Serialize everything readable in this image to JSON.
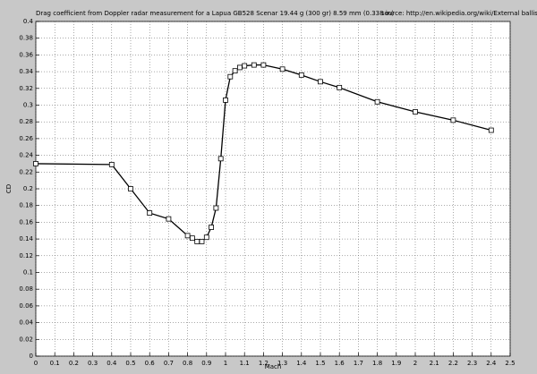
{
  "chart_data": {
    "type": "line",
    "title": "Drag coefficient from Doppler radar measurement for a Lapua GB528 Scenar 19.44 g (300 gr) 8.59 mm (0.338 in)",
    "source": "source: http://en.wikipedia.org/wiki/External ballistics",
    "x_label": "Mach",
    "y_label": "CD",
    "x": [
      0,
      0.4,
      0.5,
      0.6,
      0.7,
      0.8,
      0.825,
      0.85,
      0.875,
      0.9,
      0.925,
      0.95,
      0.975,
      1.0,
      1.025,
      1.05,
      1.075,
      1.1,
      1.15,
      1.2,
      1.3,
      1.4,
      1.5,
      1.6,
      1.8,
      2.0,
      2.2,
      2.4
    ],
    "values": [
      0.23,
      0.229,
      0.2,
      0.171,
      0.164,
      0.144,
      0.141,
      0.137,
      0.137,
      0.142,
      0.154,
      0.177,
      0.236,
      0.306,
      0.334,
      0.341,
      0.345,
      0.347,
      0.348,
      0.348,
      0.343,
      0.336,
      0.328,
      0.321,
      0.304,
      0.292,
      0.282,
      0.27
    ],
    "color": "#000000",
    "marker": "square",
    "grid": true,
    "xlim": [
      0,
      2.5
    ],
    "ylim": [
      0,
      0.4
    ],
    "xticks": [
      0,
      0.1,
      0.2,
      0.3,
      0.4,
      0.5,
      0.6,
      0.7,
      0.8,
      0.9,
      1,
      1.1,
      1.2,
      1.3,
      1.4,
      1.5,
      1.6,
      1.7,
      1.8,
      1.9,
      2,
      2.1,
      2.2,
      2.3,
      2.4,
      2.5
    ],
    "yticks": [
      0,
      0.02,
      0.04,
      0.06,
      0.08,
      0.1,
      0.12,
      0.14,
      0.16,
      0.18,
      0.2,
      0.22,
      0.24,
      0.26,
      0.28,
      0.3,
      0.32,
      0.34,
      0.36,
      0.38,
      0.4
    ]
  }
}
